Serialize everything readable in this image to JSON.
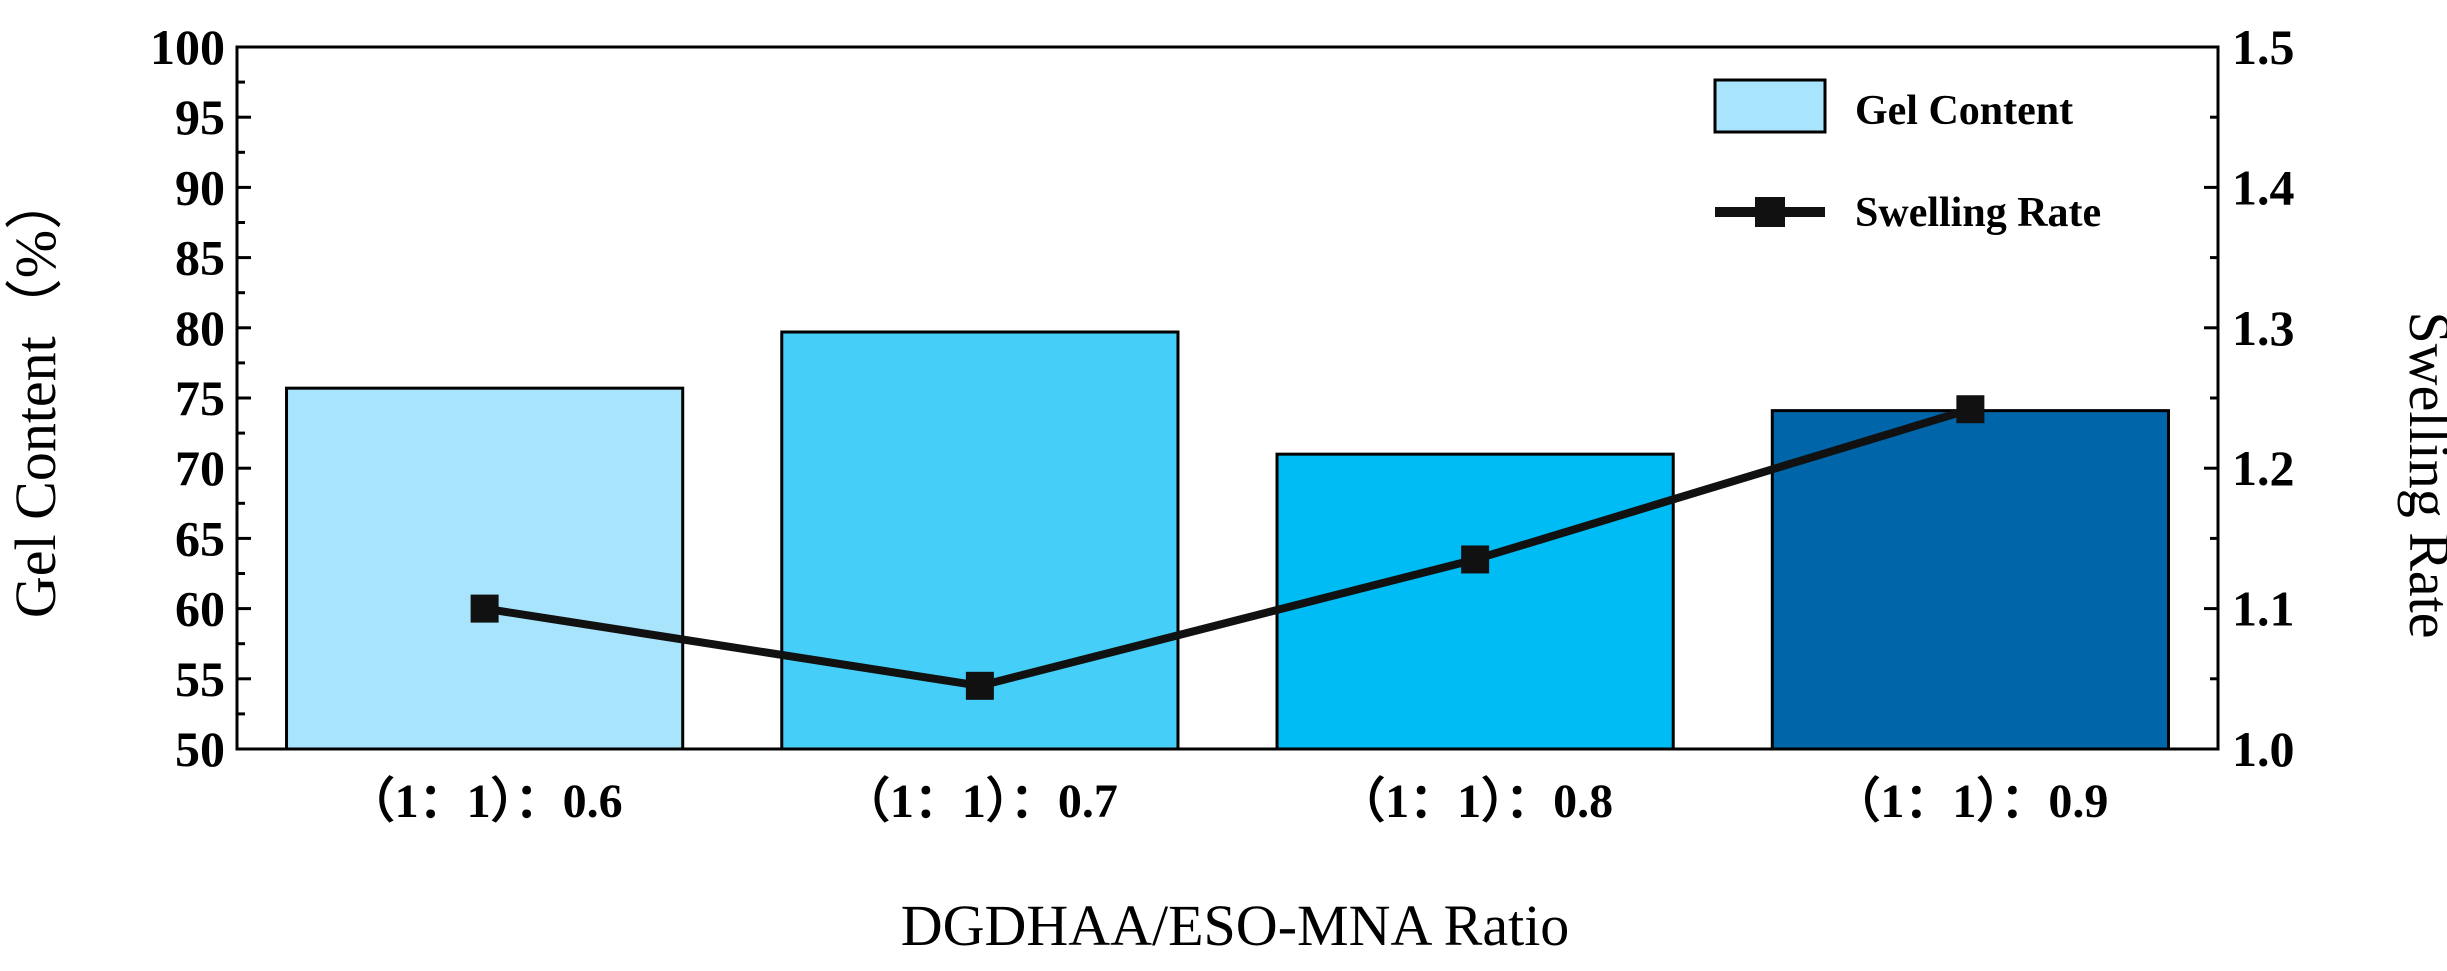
{
  "chart_data": {
    "type": "bar",
    "categories": [
      "（1：1）：0.6",
      "（1：1）：0.7",
      "（1：1）：0.8",
      "（1：1）：0.9"
    ],
    "series": [
      {
        "name": "Gel Content",
        "type": "bar",
        "axis": "left",
        "values": [
          75.7,
          79.7,
          71.0,
          74.1
        ],
        "colors": [
          "#a8e4fb",
          "#45cff8",
          "#00bcf4",
          "#0066a9"
        ]
      },
      {
        "name": "Swelling Rate",
        "type": "line",
        "axis": "right",
        "values": [
          1.1,
          1.045,
          1.135,
          1.242
        ],
        "color": "#111111",
        "marker": "square"
      }
    ],
    "xlabel": "DGDHAA/ESO-MNA  Ratio",
    "ylabel": "Gel Content（%）",
    "ylabel_right": "Swelling Rate",
    "ylim": [
      50,
      100
    ],
    "ylim_right": [
      1.0,
      1.5
    ],
    "yticks": [
      "50",
      "55",
      "60",
      "65",
      "70",
      "75",
      "80",
      "85",
      "90",
      "95",
      "100"
    ],
    "yticks_right": [
      "1.0",
      "1.1",
      "1.2",
      "1.3",
      "1.4",
      "1.5"
    ],
    "legend_position": "top-right",
    "grid": false
  }
}
